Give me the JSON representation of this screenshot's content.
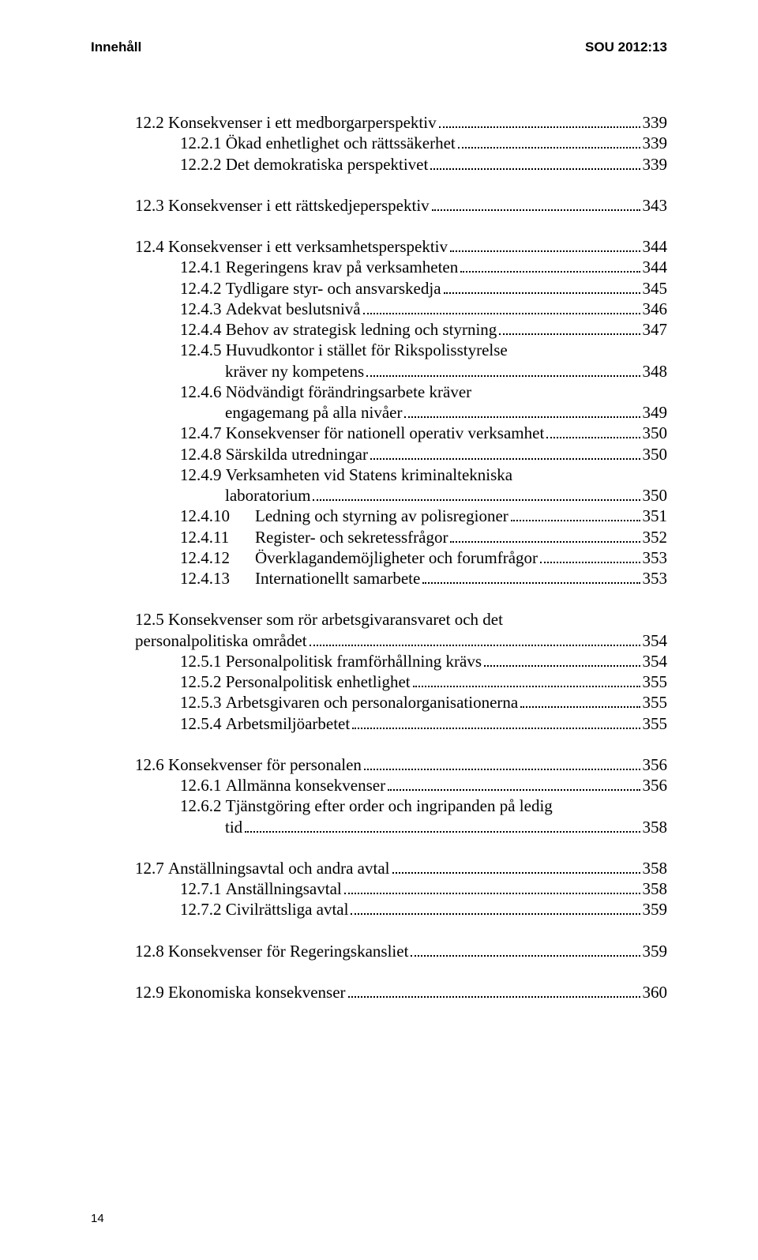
{
  "header": {
    "left": "Innehåll",
    "right": "SOU 2012:13"
  },
  "pageNumber": "14",
  "groups": [
    {
      "entries": [
        {
          "indent": "sub1",
          "num": "12.2 ",
          "title": "Konsekvenser i ett medborgarperspektiv",
          "page": "339"
        },
        {
          "indent": "sub2",
          "num": "12.2.1 ",
          "title": "Ökad enhetlighet och rättssäkerhet",
          "page": "339"
        },
        {
          "indent": "sub2",
          "num": "12.2.2 ",
          "title": "Det demokratiska perspektivet",
          "page": "339"
        }
      ]
    },
    {
      "entries": [
        {
          "indent": "sub1",
          "num": "12.3 ",
          "title": "Konsekvenser i ett rättskedjeperspektiv",
          "page": "343"
        }
      ]
    },
    {
      "entries": [
        {
          "indent": "sub1",
          "num": "12.4 ",
          "title": "Konsekvenser i ett verksamhetsperspektiv",
          "page": "344"
        },
        {
          "indent": "sub2",
          "num": "12.4.1 ",
          "title": "Regeringens krav på verksamheten",
          "page": "344"
        },
        {
          "indent": "sub2",
          "num": "12.4.2 ",
          "title": "Tydligare styr- och ansvarskedja",
          "page": "345"
        },
        {
          "indent": "sub2",
          "num": "12.4.3 ",
          "title": "Adekvat beslutsnivå",
          "page": "346"
        },
        {
          "indent": "sub2",
          "num": "12.4.4 ",
          "title": "Behov av strategisk ledning och styrning",
          "page": "347"
        },
        {
          "indent": "sub2",
          "num": "12.4.5 ",
          "title": "Huvudkontor i stället för Rikspolisstyrelse",
          "wrap": "kräver ny kompetens",
          "page": "348"
        },
        {
          "indent": "sub2",
          "num": "12.4.6 ",
          "title": "Nödvändigt förändringsarbete kräver",
          "wrap": "engagemang på alla nivåer",
          "page": "349"
        },
        {
          "indent": "sub2",
          "num": "12.4.7 ",
          "title": "Konsekvenser för nationell operativ verksamhet",
          "page": "350"
        },
        {
          "indent": "sub2",
          "num": "12.4.8 ",
          "title": "Särskilda utredningar",
          "page": "350"
        },
        {
          "indent": "sub2",
          "num": "12.4.9 ",
          "title": "Verksamheten vid Statens kriminaltekniska",
          "wrap": "laboratorium",
          "page": "350"
        },
        {
          "indent": "sub-tab",
          "tabnum": "12.4.10",
          "title": "Ledning och styrning av polisregioner",
          "page": "351"
        },
        {
          "indent": "sub-tab",
          "tabnum": "12.4.11",
          "title": "Register- och sekretessfrågor",
          "page": "352"
        },
        {
          "indent": "sub-tab",
          "tabnum": "12.4.12",
          "title": "Överklagandemöjligheter och forumfrågor",
          "page": "353"
        },
        {
          "indent": "sub-tab",
          "tabnum": "12.4.13",
          "title": "Internationellt samarbete",
          "page": "353"
        }
      ]
    },
    {
      "entries": [
        {
          "indent": "sub1",
          "num": "12.5 ",
          "title": "Konsekvenser som rör arbetsgivaransvaret och det",
          "wrap": "personalpolitiska området",
          "wrapIndent": "sub1",
          "page": "354"
        },
        {
          "indent": "sub2",
          "num": "12.5.1 ",
          "title": "Personalpolitisk framförhållning krävs",
          "page": "354"
        },
        {
          "indent": "sub2",
          "num": "12.5.2 ",
          "title": "Personalpolitisk enhetlighet",
          "page": "355"
        },
        {
          "indent": "sub2",
          "num": "12.5.3 ",
          "title": "Arbetsgivaren och personalorganisationerna",
          "page": "355"
        },
        {
          "indent": "sub2",
          "num": "12.5.4 ",
          "title": "Arbetsmiljöarbetet",
          "page": "355"
        }
      ]
    },
    {
      "entries": [
        {
          "indent": "sub1",
          "num": "12.6 ",
          "title": "Konsekvenser för personalen",
          "page": "356"
        },
        {
          "indent": "sub2",
          "num": "12.6.1 ",
          "title": "Allmänna konsekvenser",
          "page": "356"
        },
        {
          "indent": "sub2",
          "num": "12.6.2 ",
          "title": "Tjänstgöring efter order och ingripanden på ledig",
          "wrap": "tid",
          "page": "358"
        }
      ]
    },
    {
      "entries": [
        {
          "indent": "sub1",
          "num": "12.7 ",
          "title": "Anställningsavtal och andra avtal",
          "page": "358"
        },
        {
          "indent": "sub2",
          "num": "12.7.1 ",
          "title": "Anställningsavtal",
          "page": "358"
        },
        {
          "indent": "sub2",
          "num": "12.7.2 ",
          "title": "Civilrättsliga avtal",
          "page": "359"
        }
      ]
    },
    {
      "entries": [
        {
          "indent": "sub1",
          "num": "12.8 ",
          "title": "Konsekvenser för Regeringskansliet",
          "page": "359"
        }
      ]
    },
    {
      "entries": [
        {
          "indent": "sub1",
          "num": "12.9 ",
          "title": "Ekonomiska konsekvenser",
          "page": "360"
        }
      ]
    }
  ]
}
